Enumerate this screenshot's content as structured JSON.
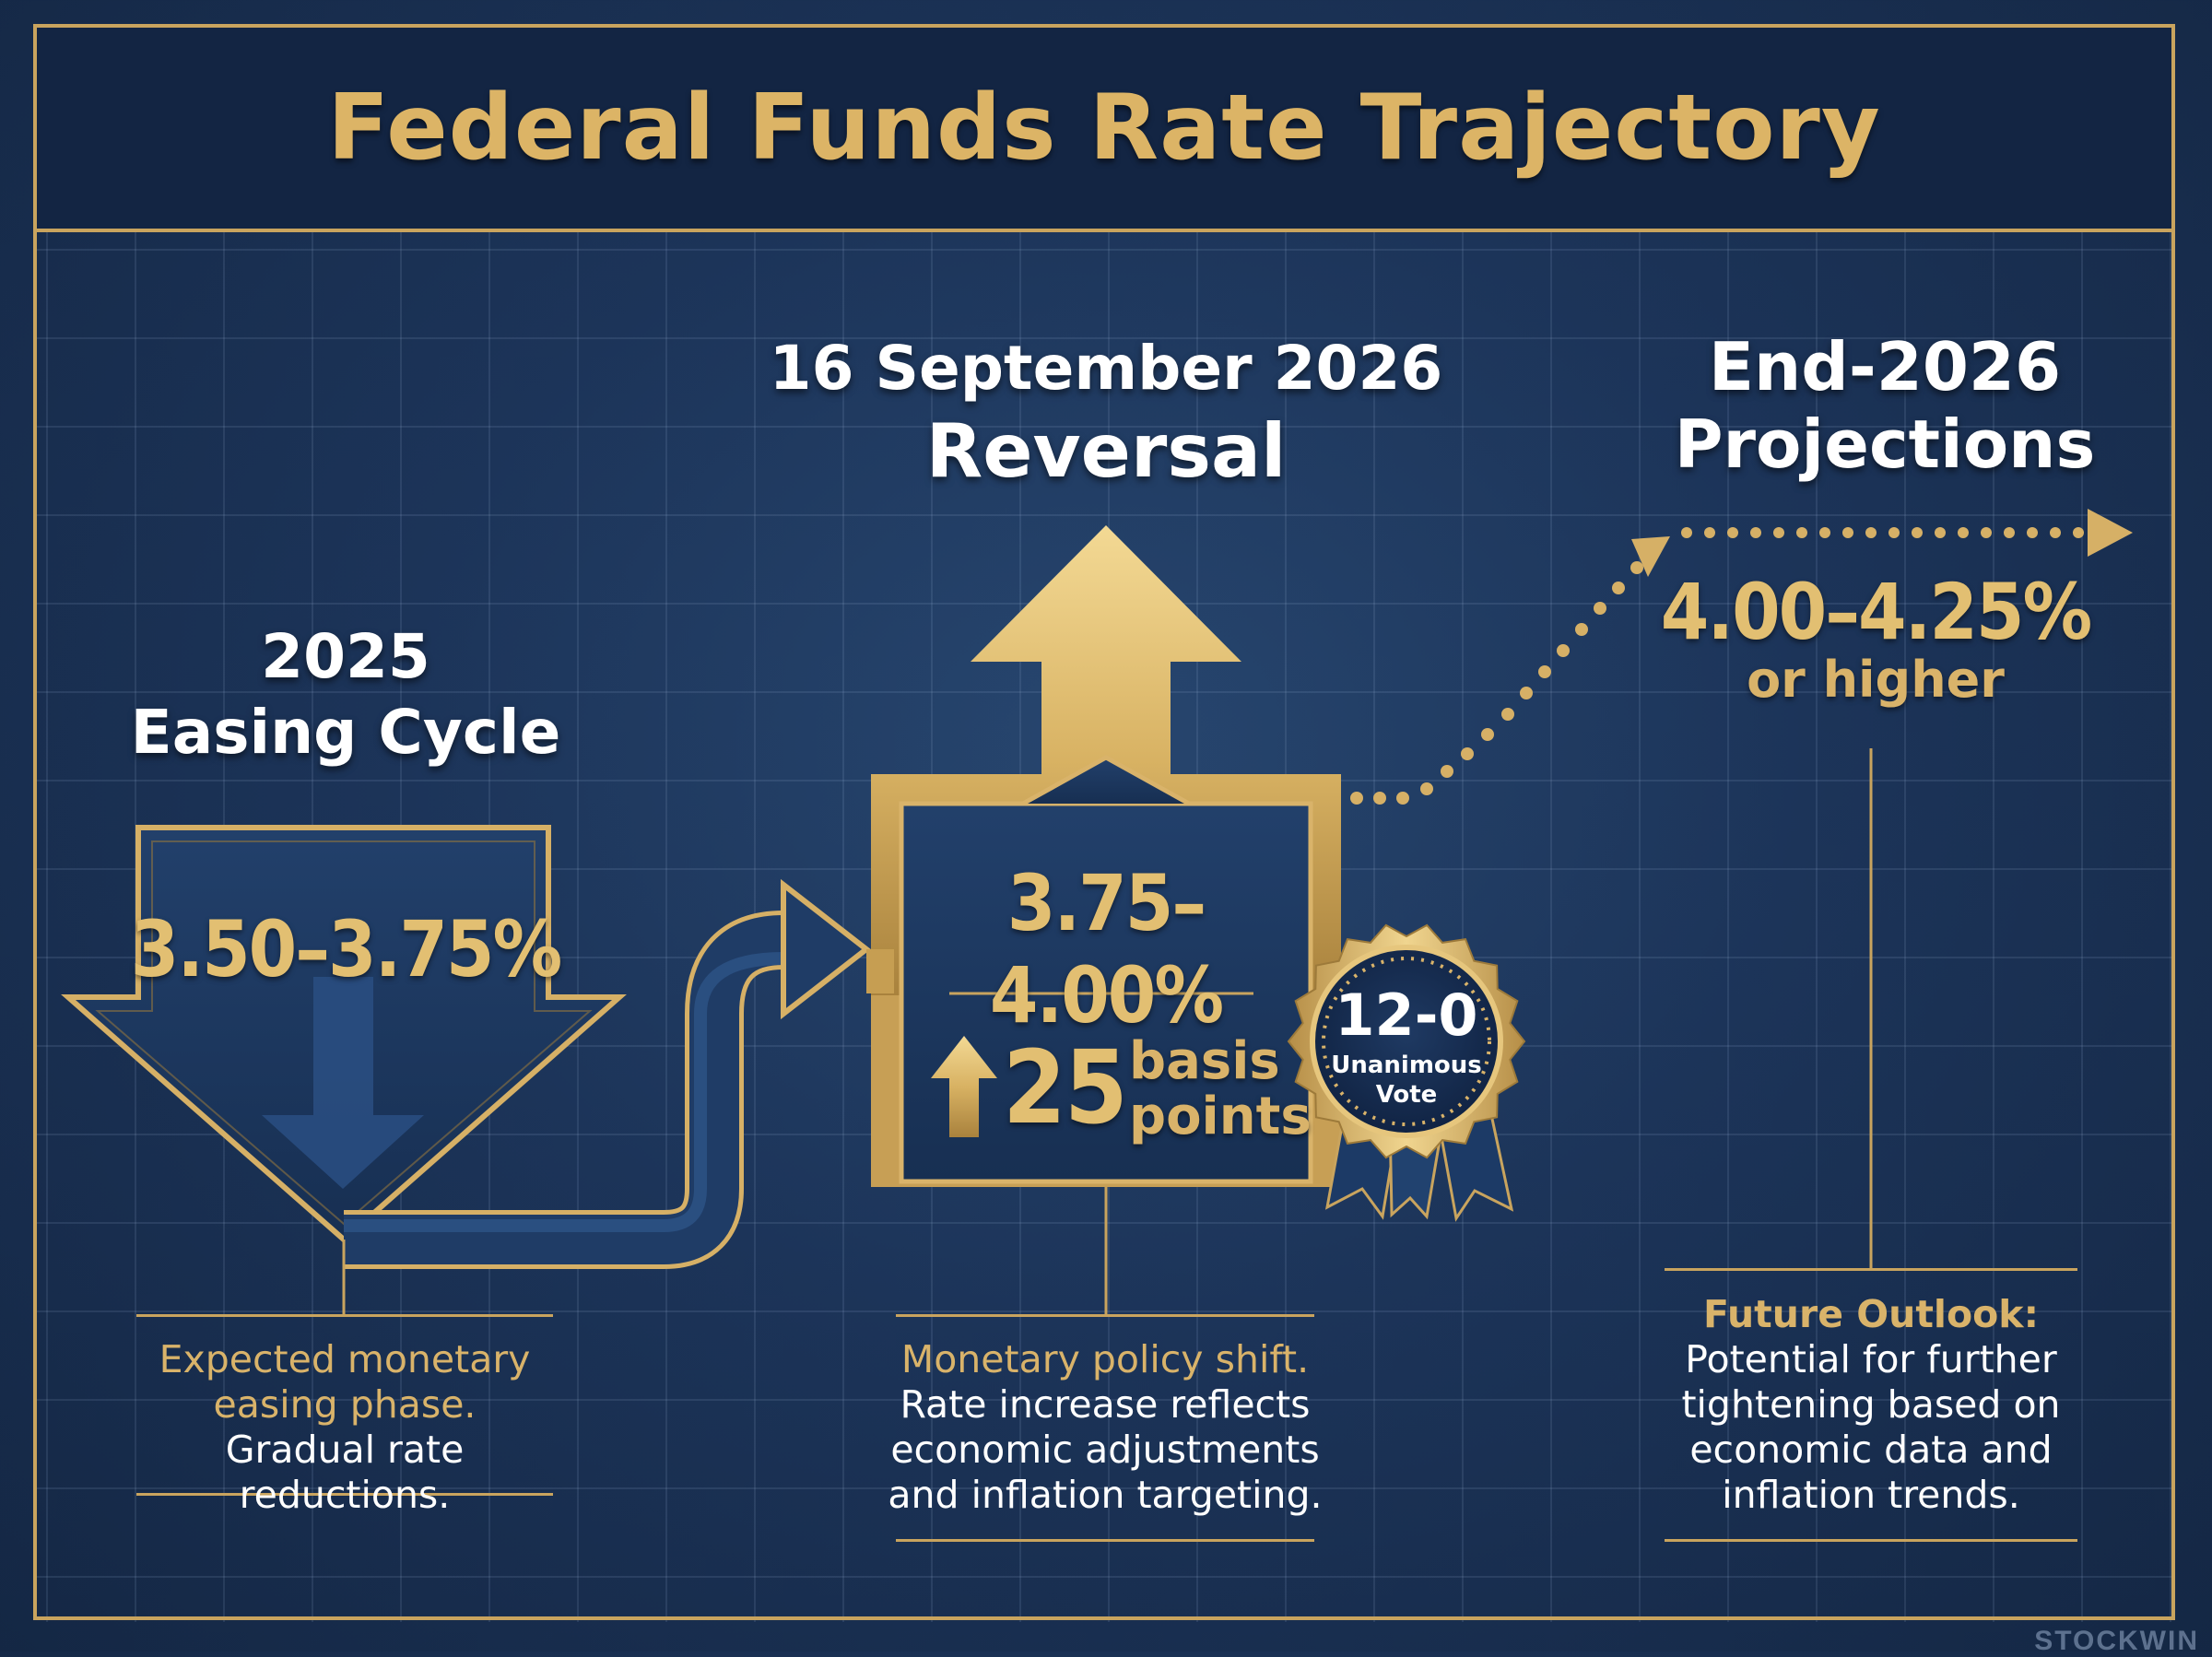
{
  "title": "Federal Funds Rate Trajectory",
  "stage1": {
    "heading_line1": "2025",
    "heading_line2": "Easing Cycle",
    "rate": "3.50–3.75%",
    "desc_gold": "Expected monetary easing phase.",
    "desc_white": " Gradual rate reductions."
  },
  "stage2": {
    "heading_line1": "16 September 2026",
    "heading_line2": "Reversal",
    "rate": "3.75–4.00%",
    "change_value": "25",
    "change_unit_line1": "basis",
    "change_unit_line2": "points",
    "seal_value": "12-0",
    "seal_line1": "Unanimous",
    "seal_line2": "Vote",
    "desc_gold": "Monetary policy shift.",
    "desc_white": "Rate increase reflects economic adjustments and inflation targeting."
  },
  "stage3": {
    "heading_line1": "End-2026",
    "heading_line2": "Projections",
    "rate": "4.00–4.25%",
    "rate_suffix": "or higher",
    "desc_title": "Future Outlook:",
    "desc_white": "Potential for further tightening based on economic data and inflation trends."
  },
  "watermark": "STOCKWIN",
  "colors": {
    "gold": "#d9b36a",
    "navy": "#1c3459",
    "navy_dark": "#132543",
    "white": "#ffffff"
  },
  "icons": [
    "down-arrow-icon",
    "up-arrow-icon",
    "curved-arrow-icon",
    "dotted-arrow-icon",
    "ribbon-seal-icon",
    "small-up-arrow-icon"
  ]
}
